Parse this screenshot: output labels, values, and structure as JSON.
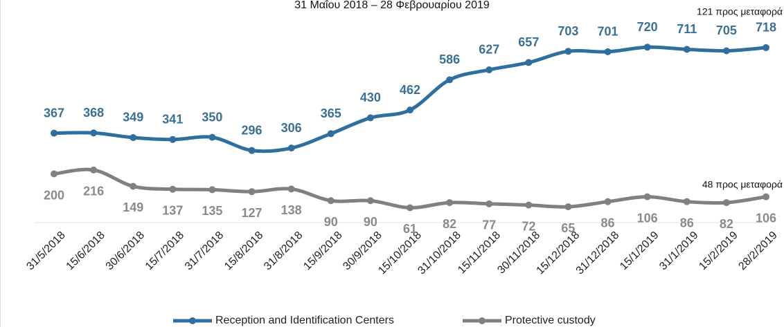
{
  "chart_data": {
    "type": "line",
    "title": "31 Μαΐου 2018 – 28 Φεβρουαρίου 2019",
    "categories": [
      "31/5/2018",
      "15/6/2018",
      "30/6/2018",
      "15/7/2018",
      "31/7/2018",
      "15/8/2018",
      "31/8/2018",
      "15/9/2018",
      "30/9/2018",
      "15/10/2018",
      "31/10/2018",
      "15/11/2018",
      "30/11/2018",
      "15/12/2018",
      "31/12/2018",
      "15/1/2019",
      "31/1/2019",
      "15/2/2019",
      "28/2/2019"
    ],
    "series": [
      {
        "name": "Reception and Identification Centers",
        "color": "#2e6f9e",
        "label_color": "#3a6f96",
        "values": [
          367,
          368,
          349,
          341,
          350,
          296,
          306,
          365,
          430,
          462,
          586,
          627,
          657,
          703,
          701,
          720,
          711,
          705,
          718
        ]
      },
      {
        "name": "Protective custody",
        "color": "#808080",
        "label_color": "#8a8a8a",
        "values": [
          200,
          216,
          149,
          137,
          135,
          127,
          138,
          90,
          90,
          61,
          82,
          77,
          72,
          65,
          86,
          106,
          86,
          82,
          106
        ]
      }
    ],
    "annotations": [
      "121 προς μεταφορά",
      "48 προς μεταφορά"
    ],
    "ylim": [
      0,
      800
    ],
    "legend": "bottom"
  }
}
